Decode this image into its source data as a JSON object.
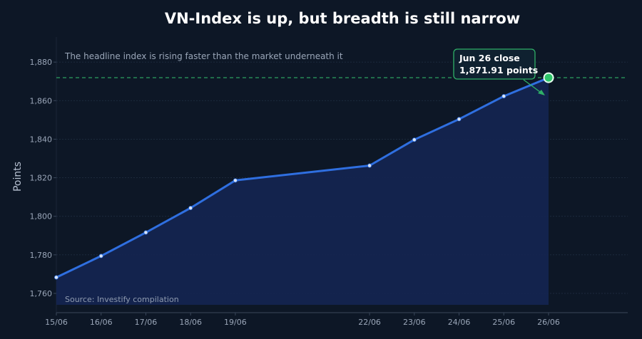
{
  "chart_data": {
    "type": "line",
    "title": "VN-Index is up, but breadth is still narrow",
    "subtitle": "The headline index is rising faster than the market underneath it",
    "source": "Source: Investify compilation",
    "ylabel": "Points",
    "xlabel": "",
    "ylim": [
      1750,
      1893
    ],
    "yticks": [
      1760,
      1780,
      1800,
      1820,
      1840,
      1860,
      1880
    ],
    "ytick_labels": [
      "1,760",
      "1,780",
      "1,800",
      "1,820",
      "1,840",
      "1,860",
      "1,880"
    ],
    "x": [
      "2025-06-15",
      "2025-06-16",
      "2025-06-17",
      "2025-06-18",
      "2025-06-19",
      "2025-06-22",
      "2025-06-23",
      "2025-06-24",
      "2025-06-25",
      "2025-06-26"
    ],
    "x_labels": [
      "15/06",
      "16/06",
      "17/06",
      "18/06",
      "19/06",
      "22/06",
      "23/06",
      "24/06",
      "25/06",
      "26/06"
    ],
    "series": [
      {
        "values": [
          1768.3,
          1779.4,
          1791.6,
          1804.3,
          1818.6,
          1826.3,
          1839.7,
          1850.4,
          1862.3,
          1871.91
        ]
      }
    ],
    "reference_line": {
      "value": 1871.91,
      "style": "dashed",
      "color": "#2fb067"
    },
    "annotation": {
      "line1": "Jun 26 close",
      "line2": "1,871.91 points",
      "target_index": 9
    },
    "colors": {
      "line": "#2f6fe0",
      "area": "#14244f",
      "point": "#d8e4f5",
      "highlight": "#2fc66a"
    },
    "grid": true
  }
}
